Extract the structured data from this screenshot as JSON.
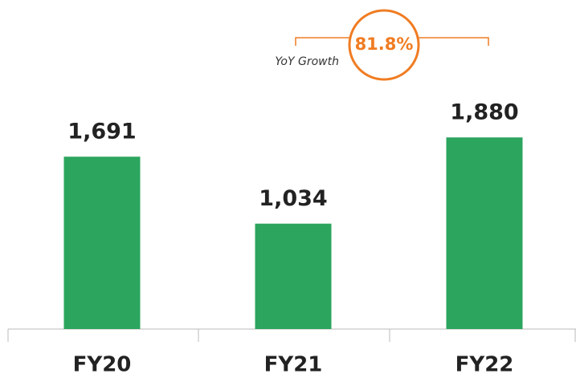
{
  "chart_data": {
    "type": "bar",
    "categories": [
      "FY20",
      "FY21",
      "FY22"
    ],
    "values": [
      1691,
      1034,
      1880
    ],
    "value_labels": [
      "1,691",
      "1,034",
      "1,880"
    ],
    "color": "#2ca55e",
    "ylim": [
      0,
      2500
    ],
    "annotation": {
      "text": "YoY Growth",
      "value_label": "81.8%",
      "color": "#f07c22"
    }
  }
}
